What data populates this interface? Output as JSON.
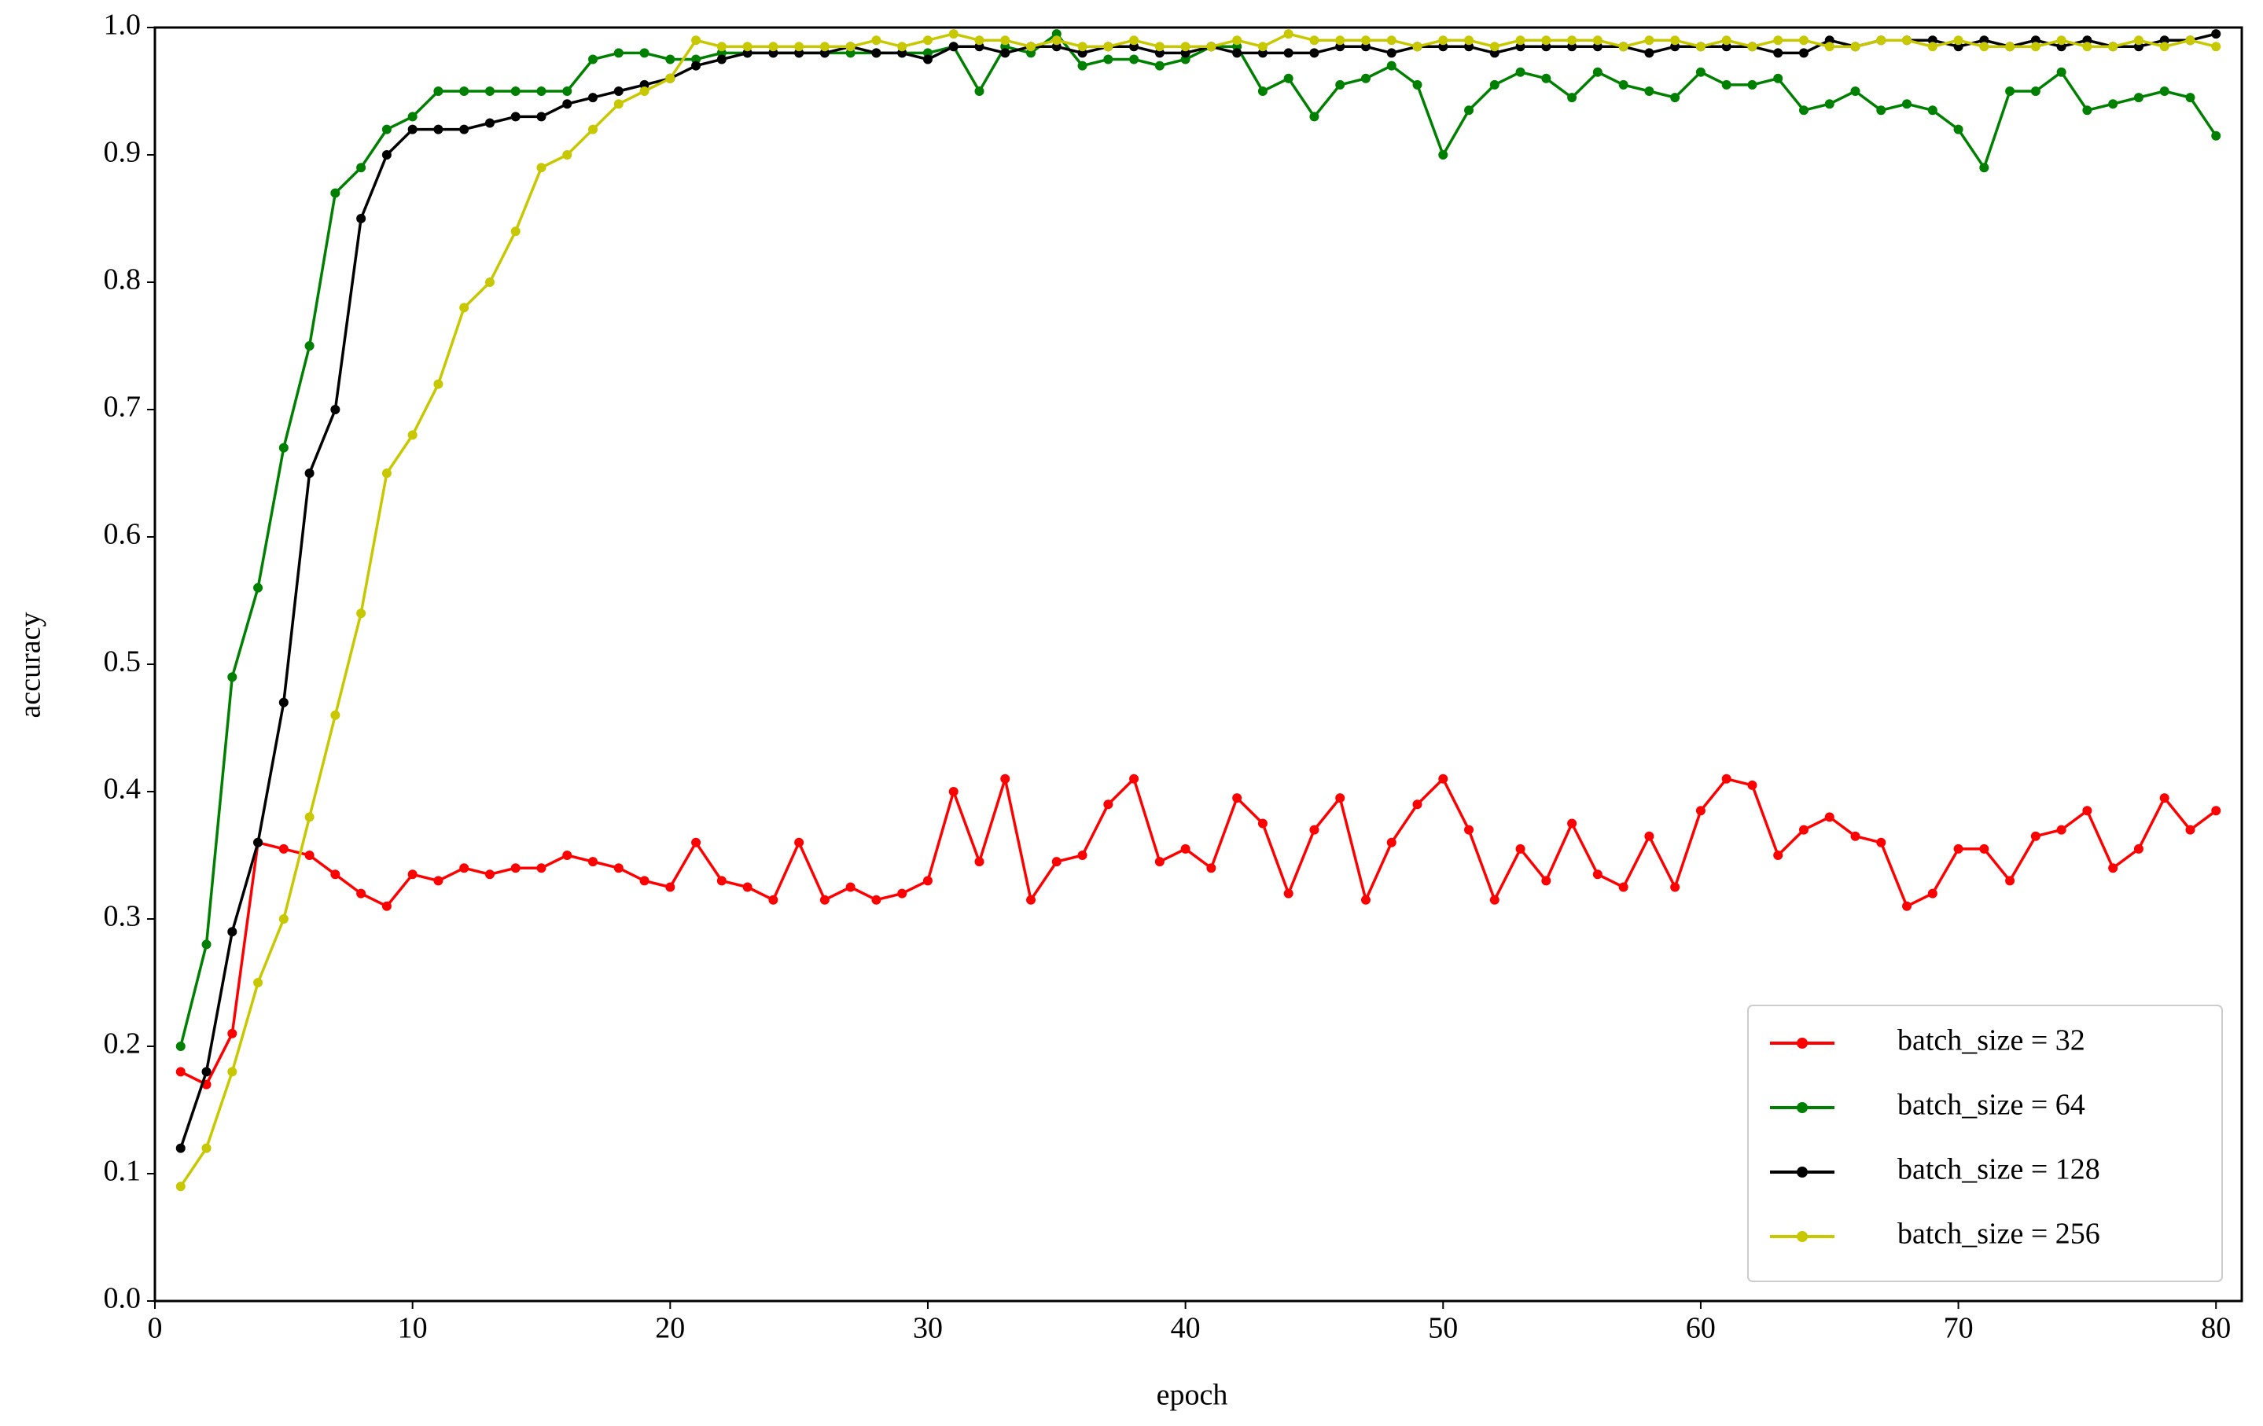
{
  "chart_data": {
    "type": "line",
    "x_label": "epoch",
    "y_label": "accuracy",
    "x": [
      1,
      2,
      3,
      4,
      5,
      6,
      7,
      8,
      9,
      10,
      11,
      12,
      13,
      14,
      15,
      16,
      17,
      18,
      19,
      20,
      21,
      22,
      23,
      24,
      25,
      26,
      27,
      28,
      29,
      30,
      31,
      32,
      33,
      34,
      35,
      36,
      37,
      38,
      39,
      40,
      41,
      42,
      43,
      44,
      45,
      46,
      47,
      48,
      49,
      50,
      51,
      52,
      53,
      54,
      55,
      56,
      57,
      58,
      59,
      60,
      61,
      62,
      63,
      64,
      65,
      66,
      67,
      68,
      69,
      70,
      71,
      72,
      73,
      74,
      75,
      76,
      77,
      78,
      79,
      80
    ],
    "xlim": [
      0,
      81
    ],
    "xticks": [
      0,
      10,
      20,
      30,
      40,
      50,
      60,
      70,
      80
    ],
    "ylim": [
      0,
      1
    ],
    "yticks": [
      {
        "value": 0,
        "label": "0.0"
      },
      0.1,
      0.2,
      0.3,
      0.4,
      0.5,
      0.6,
      0.7,
      0.8,
      0.9,
      {
        "value": 1,
        "label": "1.0"
      }
    ],
    "grid": false,
    "legend": "lower right",
    "series": [
      {
        "name": "batch_size = 32",
        "color": "#ff0000",
        "values": [
          0.18,
          0.17,
          0.21,
          0.36,
          0.355,
          0.35,
          0.335,
          0.32,
          0.31,
          0.335,
          0.33,
          0.34,
          0.335,
          0.34,
          0.34,
          0.35,
          0.345,
          0.34,
          0.33,
          0.325,
          0.36,
          0.33,
          0.325,
          0.315,
          0.36,
          0.315,
          0.325,
          0.315,
          0.32,
          0.33,
          0.4,
          0.345,
          0.41,
          0.315,
          0.345,
          0.35,
          0.39,
          0.41,
          0.345,
          0.355,
          0.34,
          0.395,
          0.375,
          0.32,
          0.37,
          0.395,
          0.315,
          0.36,
          0.39,
          0.41,
          0.37,
          0.315,
          0.355,
          0.33,
          0.375,
          0.335,
          0.325,
          0.365,
          0.325,
          0.385,
          0.41,
          0.405,
          0.35,
          0.37,
          0.38,
          0.365,
          0.36,
          0.31,
          0.32,
          0.355,
          0.355,
          0.33,
          0.365,
          0.37,
          0.385,
          0.34,
          0.355,
          0.395,
          0.37,
          0.385
        ]
      },
      {
        "name": "batch_size = 64",
        "color": "#008000",
        "values": [
          0.2,
          0.28,
          0.49,
          0.56,
          0.67,
          0.75,
          0.87,
          0.89,
          0.92,
          0.93,
          0.95,
          0.95,
          0.95,
          0.95,
          0.95,
          0.95,
          0.975,
          0.98,
          0.98,
          0.975,
          0.975,
          0.98,
          0.98,
          0.98,
          0.98,
          0.98,
          0.98,
          0.98,
          0.98,
          0.98,
          0.985,
          0.95,
          0.985,
          0.98,
          0.995,
          0.97,
          0.975,
          0.975,
          0.97,
          0.975,
          0.985,
          0.985,
          0.95,
          0.96,
          0.93,
          0.955,
          0.96,
          0.97,
          0.955,
          0.9,
          0.935,
          0.955,
          0.965,
          0.96,
          0.945,
          0.965,
          0.955,
          0.95,
          0.945,
          0.965,
          0.955,
          0.955,
          0.96,
          0.935,
          0.94,
          0.95,
          0.935,
          0.94,
          0.935,
          0.92,
          0.89,
          0.95,
          0.95,
          0.965,
          0.935,
          0.94,
          0.945,
          0.95,
          0.945,
          0.915
        ]
      },
      {
        "name": "batch_size = 128",
        "color": "#000000",
        "values": [
          0.12,
          0.18,
          0.29,
          0.36,
          0.47,
          0.65,
          0.7,
          0.85,
          0.9,
          0.92,
          0.92,
          0.92,
          0.925,
          0.93,
          0.93,
          0.94,
          0.945,
          0.95,
          0.955,
          0.96,
          0.97,
          0.975,
          0.98,
          0.98,
          0.98,
          0.98,
          0.985,
          0.98,
          0.98,
          0.975,
          0.985,
          0.985,
          0.98,
          0.985,
          0.985,
          0.98,
          0.985,
          0.985,
          0.98,
          0.98,
          0.985,
          0.98,
          0.98,
          0.98,
          0.98,
          0.985,
          0.985,
          0.98,
          0.985,
          0.985,
          0.985,
          0.98,
          0.985,
          0.985,
          0.985,
          0.985,
          0.985,
          0.98,
          0.985,
          0.985,
          0.985,
          0.985,
          0.98,
          0.98,
          0.99,
          0.985,
          0.99,
          0.99,
          0.99,
          0.985,
          0.99,
          0.985,
          0.99,
          0.985,
          0.99,
          0.985,
          0.985,
          0.99,
          0.99,
          0.995
        ]
      },
      {
        "name": "batch_size = 256",
        "color": "#c8c800",
        "values": [
          0.09,
          0.12,
          0.18,
          0.25,
          0.3,
          0.38,
          0.46,
          0.54,
          0.65,
          0.68,
          0.72,
          0.78,
          0.8,
          0.84,
          0.89,
          0.9,
          0.92,
          0.94,
          0.95,
          0.96,
          0.99,
          0.985,
          0.985,
          0.985,
          0.985,
          0.985,
          0.985,
          0.99,
          0.985,
          0.99,
          0.995,
          0.99,
          0.99,
          0.985,
          0.99,
          0.985,
          0.985,
          0.99,
          0.985,
          0.985,
          0.985,
          0.99,
          0.985,
          0.995,
          0.99,
          0.99,
          0.99,
          0.99,
          0.985,
          0.99,
          0.99,
          0.985,
          0.99,
          0.99,
          0.99,
          0.99,
          0.985,
          0.99,
          0.99,
          0.985,
          0.99,
          0.985,
          0.99,
          0.99,
          0.985,
          0.985,
          0.99,
          0.99,
          0.985,
          0.99,
          0.985,
          0.985,
          0.985,
          0.99,
          0.985,
          0.985,
          0.99,
          0.985,
          0.99,
          0.985
        ]
      }
    ]
  }
}
